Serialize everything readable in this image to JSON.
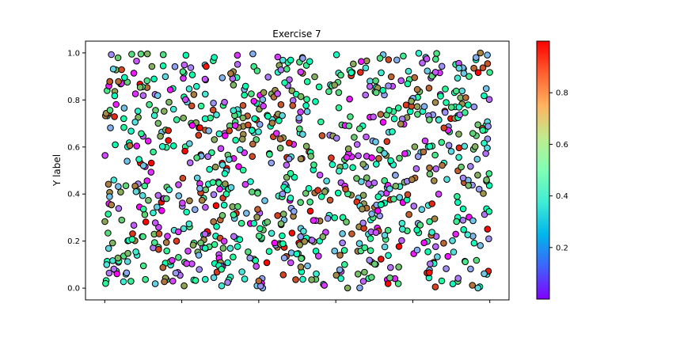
{
  "chart_data": {
    "type": "scatter",
    "title": "Exercise 7",
    "xlabel": "",
    "ylabel": "Y label",
    "xlim": [
      -0.05,
      1.05
    ],
    "ylim": [
      -0.05,
      1.05
    ],
    "yticks": [
      0.0,
      0.2,
      0.4,
      0.6,
      0.8,
      1.0
    ],
    "ytick_labels": [
      "0.0",
      "0.2",
      "0.4",
      "0.6",
      "0.8",
      "1.0"
    ],
    "xticks": [
      0.0,
      0.2,
      0.4,
      0.6,
      0.8,
      1.0
    ],
    "grid": false,
    "colormap": "rainbow",
    "marker_edge_color": "#000000",
    "colorbar": {
      "range": [
        0.0,
        1.0
      ],
      "ticks": [
        0.2,
        0.4,
        0.6,
        0.8
      ],
      "tick_labels": [
        "0.2",
        "0.4",
        "0.6",
        "0.8"
      ]
    },
    "point_count": 1000,
    "points_x": [],
    "points_y": [],
    "points_c": []
  }
}
